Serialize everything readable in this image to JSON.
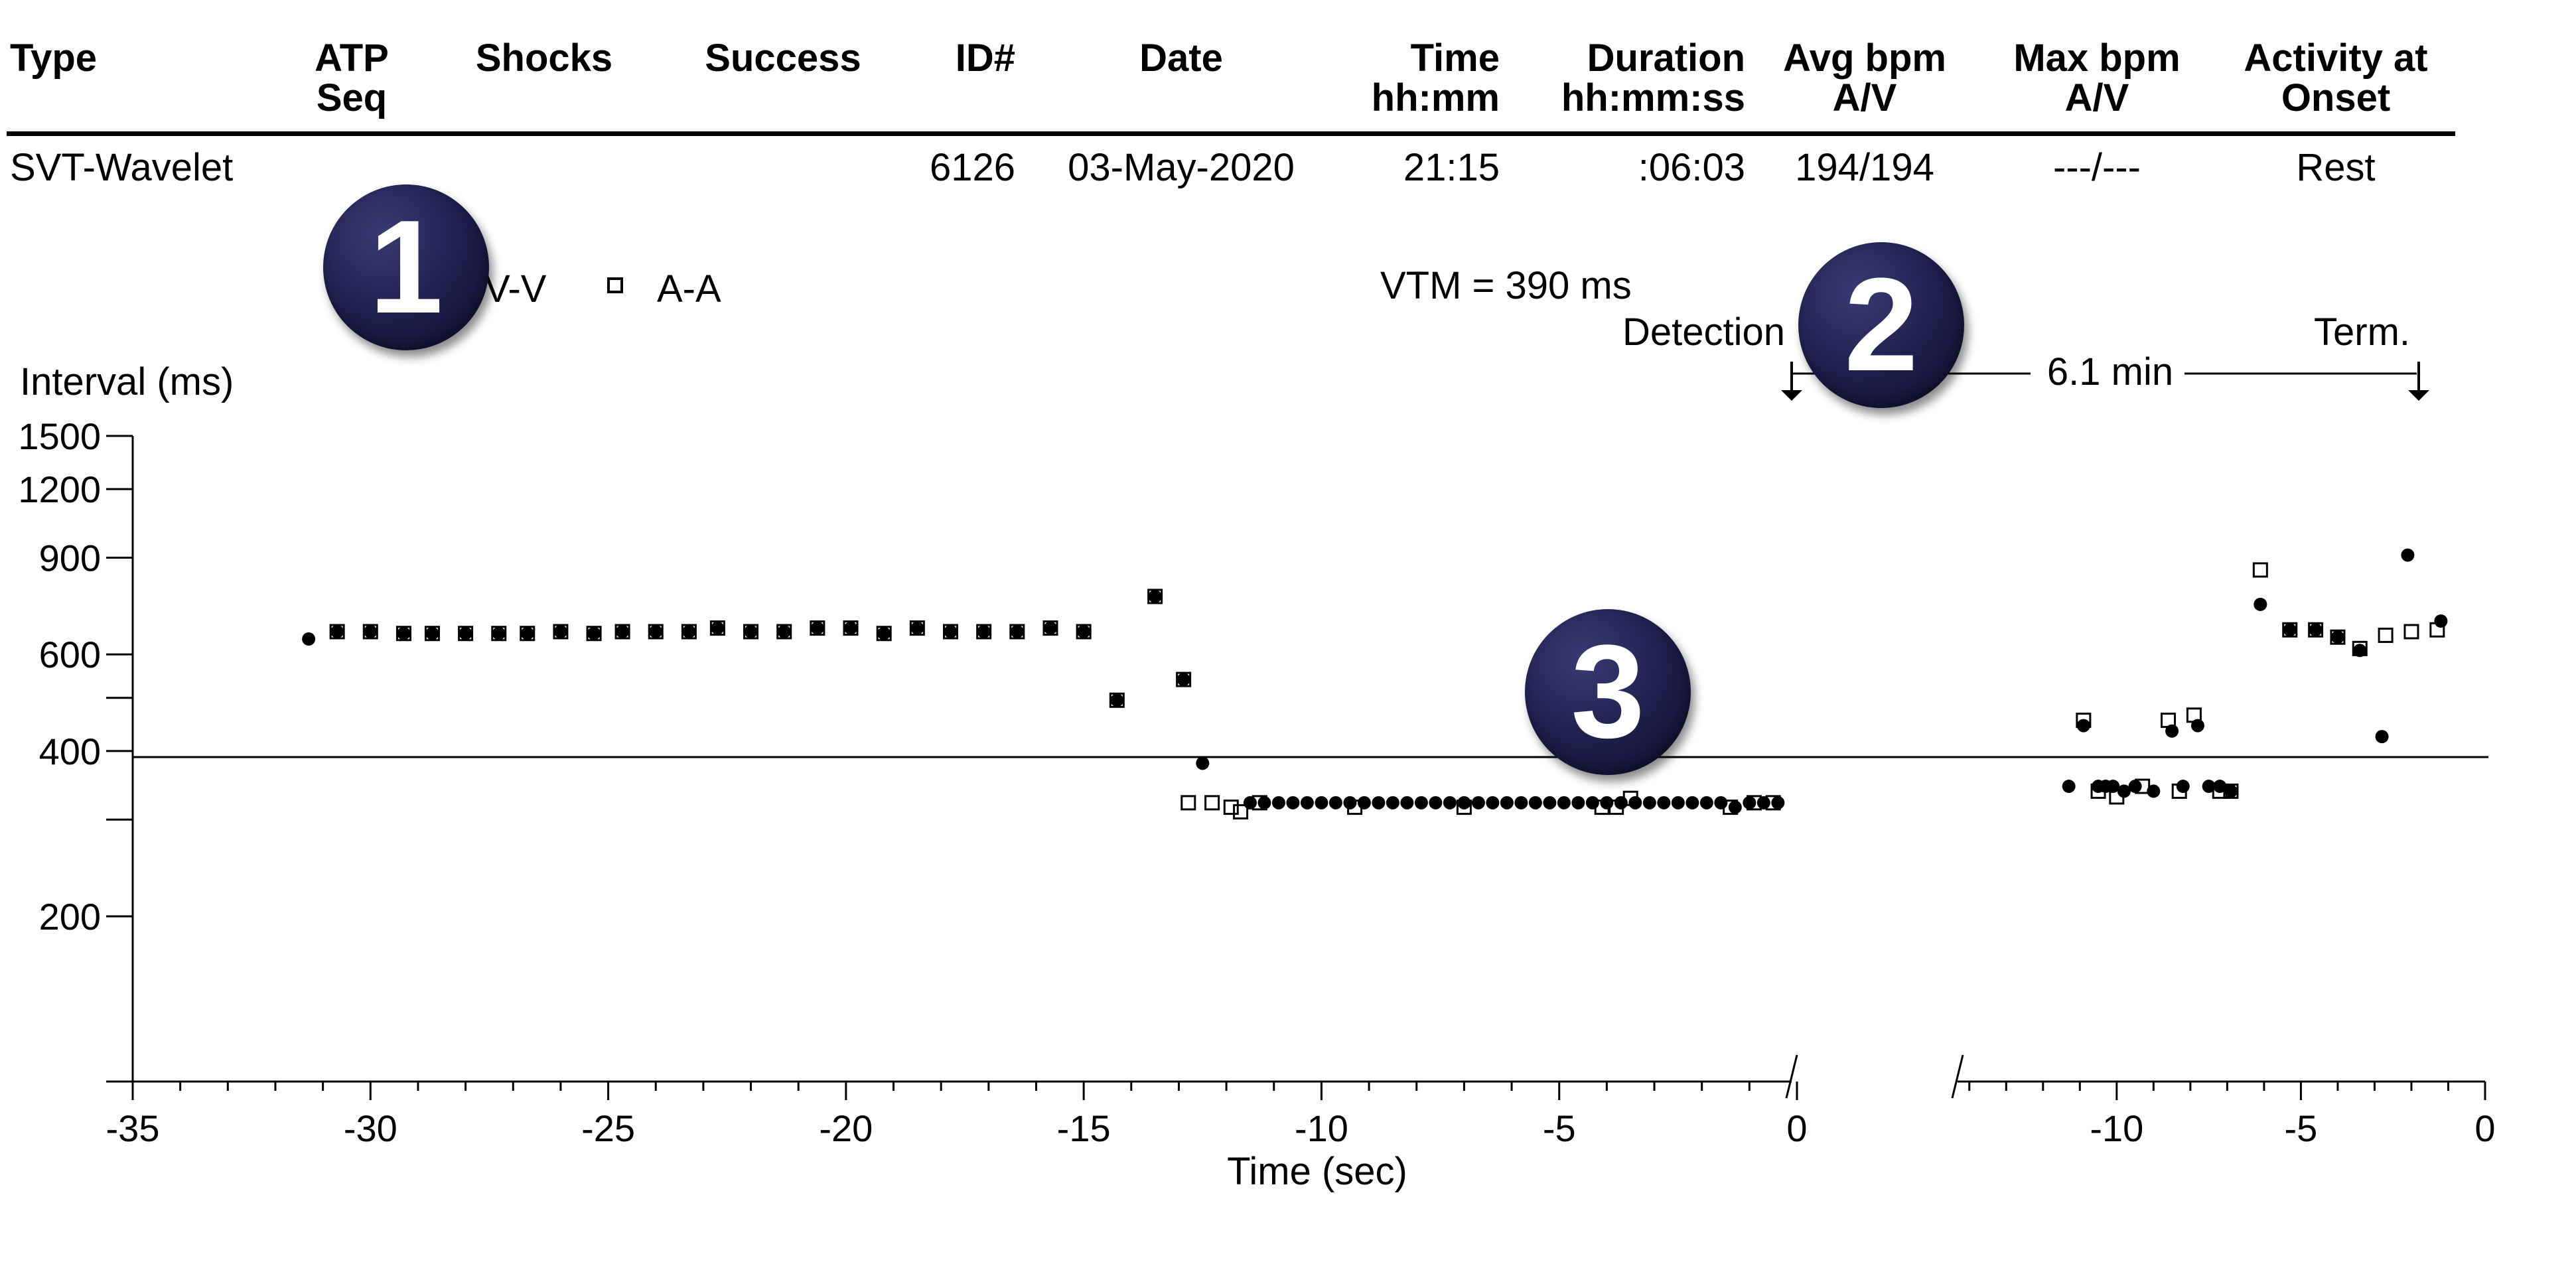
{
  "table": {
    "headers": [
      {
        "l1": "",
        "l2": "Type"
      },
      {
        "l1": "ATP",
        "l2": "Seq"
      },
      {
        "l1": "",
        "l2": "Shocks"
      },
      {
        "l1": "",
        "l2": "Success"
      },
      {
        "l1": "",
        "l2": "ID#"
      },
      {
        "l1": "",
        "l2": "Date"
      },
      {
        "l1": "Time",
        "l2": "hh:mm"
      },
      {
        "l1": "Duration",
        "l2": "hh:mm:ss"
      },
      {
        "l1": "Avg bpm",
        "l2": "A/V"
      },
      {
        "l1": "Max bpm",
        "l2": "A/V"
      },
      {
        "l1": "Activity at",
        "l2": "Onset"
      }
    ],
    "row": {
      "type": "SVT-Wavelet",
      "atp_seq": "",
      "shocks": "",
      "success": "",
      "id": "6126",
      "date": "03-May-2020",
      "time": "21:15",
      "duration": ":06:03",
      "avg_bpm": "194/194",
      "max_bpm": "---/---",
      "activity": "Rest"
    }
  },
  "badges": [
    "1",
    "2",
    "3"
  ],
  "chart_data": {
    "type": "scatter",
    "xlabel": "Time (sec)",
    "ylabel": "Interval (ms)",
    "y_scale": "log",
    "ylim": [
      100,
      1500
    ],
    "y_ticks": [
      100,
      200,
      300,
      400,
      500,
      600,
      900,
      1200,
      1500
    ],
    "y_tick_labels": [
      "",
      "200",
      "",
      "400",
      "",
      "600",
      "900",
      "1200",
      "1500"
    ],
    "threshold": {
      "label": "VTM = 390 ms",
      "value": 390
    },
    "legend": [
      {
        "name": "V-V",
        "marker": "filled-circle"
      },
      {
        "name": "A-A",
        "marker": "open-square"
      }
    ],
    "annotations": {
      "detection": "Detection",
      "termination": "Term.",
      "duration": "6.1 min"
    },
    "panels": [
      {
        "xlim": [
          -35,
          0
        ],
        "x_ticks": [
          -35,
          -30,
          -25,
          -20,
          -15,
          -10,
          -5,
          0
        ],
        "series": [
          {
            "name": "V-V",
            "points": [
              [
                -31.3,
                640
              ],
              [
                -30.7,
                660
              ],
              [
                -30.0,
                660
              ],
              [
                -29.3,
                655
              ],
              [
                -28.7,
                655
              ],
              [
                -28.0,
                655
              ],
              [
                -27.3,
                655
              ],
              [
                -26.7,
                655
              ],
              [
                -26.0,
                660
              ],
              [
                -25.3,
                655
              ],
              [
                -24.7,
                660
              ],
              [
                -24.0,
                660
              ],
              [
                -23.3,
                660
              ],
              [
                -22.7,
                670
              ],
              [
                -22.0,
                660
              ],
              [
                -21.3,
                660
              ],
              [
                -20.6,
                670
              ],
              [
                -19.9,
                670
              ],
              [
                -19.2,
                655
              ],
              [
                -18.5,
                670
              ],
              [
                -17.8,
                660
              ],
              [
                -17.1,
                660
              ],
              [
                -16.4,
                660
              ],
              [
                -15.7,
                670
              ],
              [
                -15.0,
                660
              ],
              [
                -14.3,
                495
              ],
              [
                -13.5,
                765
              ],
              [
                -12.9,
                540
              ],
              [
                -12.5,
                380
              ],
              [
                -11.5,
                322
              ],
              [
                -11.2,
                322
              ],
              [
                -10.9,
                322
              ],
              [
                -10.6,
                322
              ],
              [
                -10.3,
                322
              ],
              [
                -10.0,
                322
              ],
              [
                -9.7,
                322
              ],
              [
                -9.4,
                322
              ],
              [
                -9.1,
                322
              ],
              [
                -8.8,
                322
              ],
              [
                -8.5,
                322
              ],
              [
                -8.2,
                322
              ],
              [
                -7.9,
                322
              ],
              [
                -7.6,
                322
              ],
              [
                -7.3,
                322
              ],
              [
                -7.0,
                322
              ],
              [
                -6.7,
                322
              ],
              [
                -6.4,
                322
              ],
              [
                -6.1,
                322
              ],
              [
                -5.8,
                322
              ],
              [
                -5.5,
                322
              ],
              [
                -5.2,
                322
              ],
              [
                -4.9,
                322
              ],
              [
                -4.6,
                322
              ],
              [
                -4.3,
                322
              ],
              [
                -4.0,
                322
              ],
              [
                -3.7,
                322
              ],
              [
                -3.4,
                322
              ],
              [
                -3.1,
                322
              ],
              [
                -2.8,
                322
              ],
              [
                -2.5,
                322
              ],
              [
                -2.2,
                322
              ],
              [
                -1.9,
                322
              ],
              [
                -1.6,
                322
              ],
              [
                -1.3,
                316
              ],
              [
                -1.0,
                322
              ],
              [
                -0.7,
                322
              ],
              [
                -0.4,
                322
              ]
            ]
          },
          {
            "name": "A-A",
            "points": [
              [
                -30.7,
                660
              ],
              [
                -30.0,
                660
              ],
              [
                -29.3,
                655
              ],
              [
                -28.7,
                655
              ],
              [
                -28.0,
                655
              ],
              [
                -27.3,
                655
              ],
              [
                -26.7,
                655
              ],
              [
                -26.0,
                660
              ],
              [
                -25.3,
                655
              ],
              [
                -24.7,
                660
              ],
              [
                -24.0,
                660
              ],
              [
                -23.3,
                660
              ],
              [
                -22.7,
                670
              ],
              [
                -22.0,
                660
              ],
              [
                -21.3,
                660
              ],
              [
                -20.6,
                670
              ],
              [
                -19.9,
                670
              ],
              [
                -19.2,
                655
              ],
              [
                -18.5,
                670
              ],
              [
                -17.8,
                660
              ],
              [
                -17.1,
                660
              ],
              [
                -16.4,
                660
              ],
              [
                -15.7,
                670
              ],
              [
                -15.0,
                660
              ],
              [
                -14.3,
                495
              ],
              [
                -13.5,
                765
              ],
              [
                -12.9,
                540
              ],
              [
                -12.8,
                322
              ],
              [
                -12.3,
                322
              ],
              [
                -11.9,
                316
              ],
              [
                -11.7,
                310
              ],
              [
                -11.3,
                322
              ],
              [
                -9.3,
                316
              ],
              [
                -7.0,
                316
              ],
              [
                -4.1,
                316
              ],
              [
                -3.8,
                316
              ],
              [
                -3.5,
                328
              ],
              [
                -1.4,
                316
              ],
              [
                -0.9,
                322
              ],
              [
                -0.5,
                322
              ]
            ]
          }
        ]
      },
      {
        "xlim": [
          -14.5,
          0
        ],
        "x_ticks": [
          -10,
          -5,
          0
        ],
        "series": [
          {
            "name": "V-V",
            "points": [
              [
                -11.3,
                345
              ],
              [
                -10.9,
                445
              ],
              [
                -10.5,
                345
              ],
              [
                -10.3,
                345
              ],
              [
                -10.1,
                345
              ],
              [
                -9.8,
                338
              ],
              [
                -9.5,
                345
              ],
              [
                -9.0,
                338
              ],
              [
                -8.5,
                435
              ],
              [
                -8.2,
                345
              ],
              [
                -7.8,
                445
              ],
              [
                -7.5,
                345
              ],
              [
                -7.2,
                345
              ],
              [
                -6.9,
                338
              ],
              [
                -6.1,
                740
              ],
              [
                -5.3,
                665
              ],
              [
                -4.6,
                665
              ],
              [
                -4.0,
                645
              ],
              [
                -3.4,
                610
              ],
              [
                -2.8,
                425
              ],
              [
                -2.1,
                910
              ],
              [
                -1.2,
                690
              ]
            ]
          },
          {
            "name": "A-A",
            "points": [
              [
                -10.9,
                455
              ],
              [
                -10.5,
                338
              ],
              [
                -10.0,
                330
              ],
              [
                -9.3,
                345
              ],
              [
                -8.6,
                455
              ],
              [
                -8.3,
                338
              ],
              [
                -7.9,
                465
              ],
              [
                -7.2,
                338
              ],
              [
                -6.9,
                338
              ],
              [
                -6.1,
                855
              ],
              [
                -5.3,
                665
              ],
              [
                -4.6,
                665
              ],
              [
                -4.0,
                645
              ],
              [
                -3.4,
                615
              ],
              [
                -2.7,
                650
              ],
              [
                -2.0,
                660
              ],
              [
                -1.3,
                665
              ]
            ]
          }
        ]
      }
    ]
  }
}
